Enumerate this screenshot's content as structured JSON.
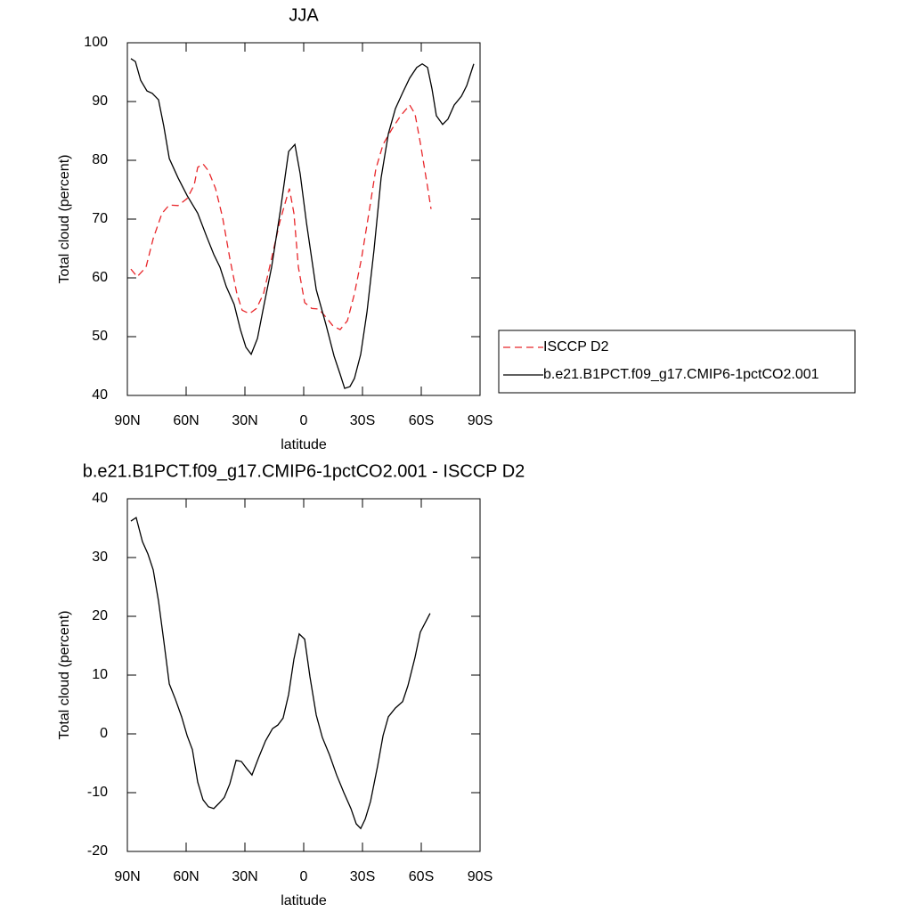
{
  "chart_data": [
    {
      "type": "line",
      "title": "JJA",
      "xlabel": "latitude",
      "ylabel": "Total cloud (percent)",
      "xlim": [
        90,
        -90
      ],
      "xticks": [
        {
          "value": 90,
          "label": "90N"
        },
        {
          "value": 60,
          "label": "60N"
        },
        {
          "value": 30,
          "label": "30N"
        },
        0,
        {
          "value": -30,
          "label": "30S"
        },
        {
          "value": -60,
          "label": "60S"
        },
        {
          "value": -90,
          "label": "90S"
        }
      ],
      "ylim": [
        40,
        100
      ],
      "yticks": [
        40,
        50,
        60,
        70,
        80,
        90,
        100
      ],
      "legend": "right",
      "series": [
        {
          "name": "ISCCP D2",
          "color": "#e8262a",
          "linestyle": "dashed",
          "x": [
            88.2,
            85,
            80.5,
            76.8,
            72.3,
            68.6,
            64.1,
            59.5,
            55.9,
            54.1,
            51.4,
            48.6,
            45,
            41.4,
            37.7,
            34.1,
            31.4,
            27.7,
            24.1,
            20.5,
            16.4,
            12.3,
            9.5,
            7.3,
            5,
            2.7,
            -0.5,
            -4.1,
            -7.7,
            -11.4,
            -15,
            -18.6,
            -22.3,
            -25.9,
            -29.5,
            -33.2,
            -36.8,
            -40.5,
            -45,
            -49.5,
            -54.1,
            -56.8,
            -59.5,
            -63.2,
            -65
          ],
          "values": [
            61.5,
            60.2,
            61.8,
            66.7,
            71,
            72.4,
            72.3,
            73.5,
            75.8,
            78.8,
            79.4,
            78.2,
            75.2,
            70.3,
            63.3,
            57.3,
            54.5,
            53.9,
            54.8,
            57.3,
            63.3,
            69.4,
            72.7,
            75.2,
            71,
            61.8,
            55.8,
            54.8,
            54.7,
            53.3,
            51.8,
            51.2,
            52.7,
            57.3,
            63.3,
            70.9,
            78.5,
            82.7,
            85.3,
            87.6,
            89.4,
            87.9,
            83,
            75.5,
            71.7
          ]
        },
        {
          "name": "b.e21.B1PCT.f09_g17.CMIP6-1pctCO2.001",
          "color": "#000000",
          "linestyle": "solid",
          "x": [
            88.2,
            85.9,
            83.2,
            80,
            77.3,
            74.1,
            71.4,
            68.6,
            64.1,
            59.5,
            54.1,
            49.5,
            45.9,
            42.7,
            39.5,
            35.5,
            32.3,
            29.5,
            26.8,
            23.6,
            20.5,
            16.4,
            11.8,
            7.7,
            4.5,
            1.8,
            -1.4,
            -6.4,
            -11.4,
            -15.5,
            -18.6,
            -20.9,
            -23.6,
            -25.9,
            -29.1,
            -32.3,
            -35.9,
            -39.5,
            -43.2,
            -46.8,
            -50.5,
            -54.1,
            -57.7,
            -60.5,
            -63.2,
            -65.5,
            -67.7,
            -70.9,
            -73.6,
            -76.8,
            -80.5,
            -83.2,
            -86.8
          ],
          "values": [
            97.3,
            96.8,
            93.6,
            91.8,
            91.4,
            90.3,
            85.8,
            80.3,
            77,
            74,
            71,
            67,
            64,
            61.8,
            58.5,
            55.5,
            51.2,
            48.2,
            47,
            49.7,
            55,
            61.8,
            71.7,
            81.5,
            82.7,
            77.7,
            69.4,
            58,
            52,
            46.7,
            43.6,
            41.2,
            41.5,
            42.9,
            47,
            54.2,
            64.8,
            77,
            84.5,
            88.8,
            91.5,
            94,
            95.8,
            96.4,
            95.8,
            92.1,
            87.6,
            86.1,
            87,
            89.4,
            90.9,
            92.7,
            96.4
          ]
        }
      ]
    },
    {
      "type": "line",
      "title": "b.e21.B1PCT.f09_g17.CMIP6-1pctCO2.001 - ISCCP D2",
      "xlabel": "latitude",
      "ylabel": "Total cloud (percent)",
      "xlim": [
        90,
        -90
      ],
      "xticks": [
        {
          "value": 90,
          "label": "90N"
        },
        {
          "value": 60,
          "label": "60N"
        },
        {
          "value": 30,
          "label": "30N"
        },
        0,
        {
          "value": -30,
          "label": "30S"
        },
        {
          "value": -60,
          "label": "60S"
        },
        {
          "value": -90,
          "label": "90S"
        }
      ],
      "ylim": [
        -20,
        40
      ],
      "yticks": [
        -20,
        -10,
        0,
        10,
        20,
        30,
        40
      ],
      "series": [
        {
          "color": "#000000",
          "linestyle": "solid",
          "x": [
            88.2,
            85.5,
            82.3,
            79.5,
            76.8,
            74.1,
            71.4,
            68.6,
            65.5,
            62.3,
            59.5,
            56.8,
            54.1,
            51.4,
            48.6,
            45.9,
            43.2,
            40.5,
            37.7,
            34.5,
            31.8,
            29.1,
            26.4,
            23.2,
            19.5,
            15.9,
            13.2,
            10.5,
            7.7,
            5,
            2.3,
            -0.5,
            -3.2,
            -6.4,
            -9.5,
            -13.2,
            -16.8,
            -20.5,
            -24.1,
            -26.8,
            -29.1,
            -31.4,
            -34.1,
            -37.7,
            -40.5,
            -43.2,
            -46.8,
            -50.5,
            -53.2,
            -56.8,
            -59.5,
            -64.5
          ],
          "values": [
            36.2,
            36.8,
            32.7,
            30.6,
            27.9,
            22.6,
            15.8,
            8.5,
            5.9,
            2.9,
            -0.3,
            -2.7,
            -8.2,
            -11.2,
            -12.4,
            -12.7,
            -11.8,
            -10.8,
            -8.5,
            -4.5,
            -4.7,
            -5.9,
            -7,
            -4.2,
            -1.2,
            0.9,
            1.5,
            2.7,
            6.7,
            12.7,
            17,
            16.1,
            9.7,
            3.2,
            -0.6,
            -3.6,
            -7,
            -10,
            -12.7,
            -15.3,
            -16.1,
            -14.5,
            -11.5,
            -5.5,
            -0.3,
            2.9,
            4.4,
            5.5,
            8.2,
            13,
            17.3,
            20.5
          ]
        }
      ]
    }
  ]
}
